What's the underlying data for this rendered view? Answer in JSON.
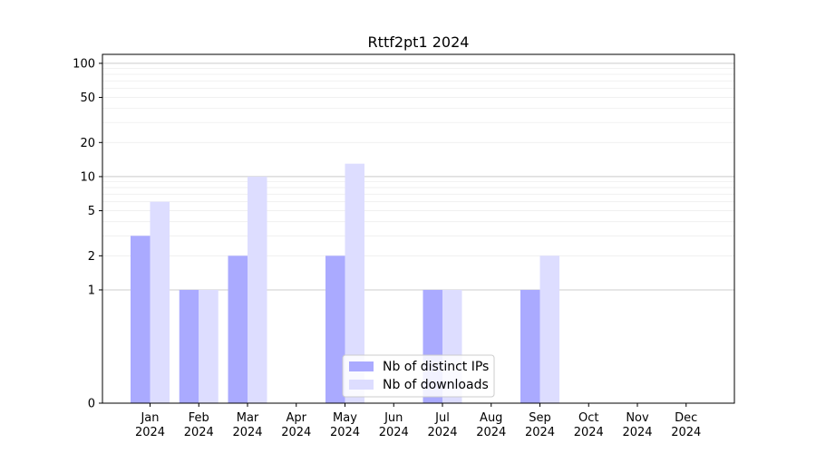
{
  "chart_data": {
    "type": "bar",
    "title": "Rttf2pt1 2024",
    "xlabel": "",
    "ylabel": "",
    "yscale": "symlog",
    "ylim": [
      0,
      120
    ],
    "yticks": [
      0,
      1,
      2,
      5,
      10,
      20,
      50,
      100
    ],
    "ytick_labels": [
      "0",
      "1",
      "2",
      "5",
      "10",
      "20",
      "50",
      "100"
    ],
    "categories": [
      "Jan\n2024",
      "Feb\n2024",
      "Mar\n2024",
      "Apr\n2024",
      "May\n2024",
      "Jun\n2024",
      "Jul\n2024",
      "Aug\n2024",
      "Sep\n2024",
      "Oct\n2024",
      "Nov\n2024",
      "Dec\n2024"
    ],
    "series": [
      {
        "name": "Nb of distinct IPs",
        "color": "#aaaaff",
        "values": [
          3,
          1,
          2,
          0,
          2,
          0,
          1,
          0,
          1,
          0,
          0,
          0
        ]
      },
      {
        "name": "Nb of downloads",
        "color": "#ddddff",
        "values": [
          6,
          1,
          10,
          0,
          13,
          0,
          1,
          0,
          2,
          0,
          0,
          0
        ]
      }
    ],
    "legend": "lower-center",
    "grid": true
  }
}
